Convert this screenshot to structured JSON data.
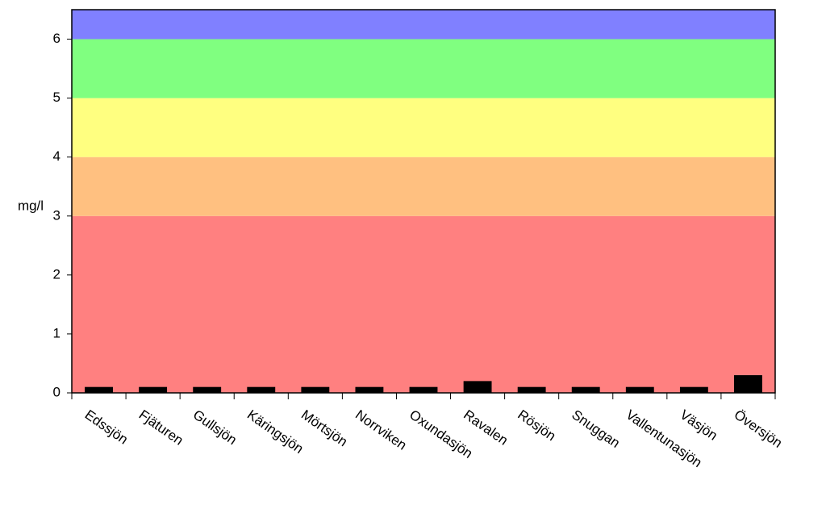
{
  "chart_data": {
    "type": "bar",
    "y_label": "mg/l",
    "categories": [
      "Edssjön",
      "Fjäturen",
      "Gullsjön",
      "Käringsjön",
      "Mörtsjön",
      "Norrviken",
      "Oxundasjön",
      "Ravalen",
      "Rösjön",
      "Snuggan",
      "Vallentunasjön",
      "Väsjön",
      "Översjön"
    ],
    "values": [
      0.1,
      0.1,
      0.1,
      0.1,
      0.1,
      0.1,
      0.1,
      0.2,
      0.1,
      0.1,
      0.1,
      0.1,
      0.3
    ],
    "color": "#000000",
    "ylim": [
      0,
      6.5
    ],
    "yticks": [
      0,
      1,
      2,
      3,
      4,
      5,
      6
    ],
    "bands": [
      {
        "from": 0,
        "to": 3,
        "color": "#ff8080"
      },
      {
        "from": 3,
        "to": 4,
        "color": "#ffc080"
      },
      {
        "from": 4,
        "to": 5,
        "color": "#ffff80"
      },
      {
        "from": 5,
        "to": 6,
        "color": "#80ff80"
      },
      {
        "from": 6,
        "to": 6.5,
        "color": "#8080ff"
      }
    ]
  }
}
